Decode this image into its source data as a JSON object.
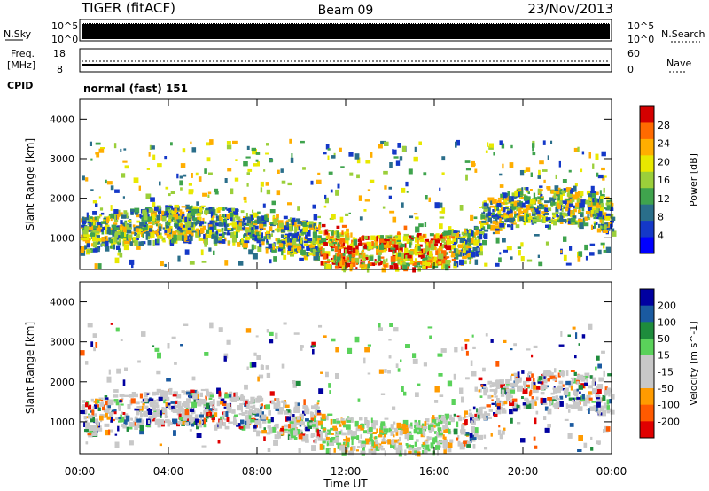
{
  "header": {
    "title": "TIGER (fitACF)",
    "beam": "Beam 09",
    "date": "23/Nov/2013"
  },
  "panels": {
    "nsky": {
      "label": "N.Sky",
      "ticks": [
        "10^5",
        "10^0"
      ],
      "right_label": "N.Search",
      "right_ticks": [
        "10^5",
        "10^0"
      ]
    },
    "freq": {
      "label_line1": "Freq.",
      "label_line2": "[MHz]",
      "ticks": [
        "18",
        "8"
      ],
      "right_label": "Nave",
      "right_ticks": [
        "60",
        "0"
      ]
    },
    "cpid": {
      "label": "CPID",
      "mode": "normal (fast) 151"
    }
  },
  "chart_data": [
    {
      "type": "heatmap",
      "name": "power",
      "ylabel": "Slant Range [km]",
      "yticks": [
        1000,
        2000,
        3000,
        4000
      ],
      "ylim": [
        200,
        4500
      ],
      "colorbar_label": "Power [dB]",
      "colorbar_ticks": [
        "28",
        "24",
        "20",
        "16",
        "12",
        "8",
        "4"
      ],
      "colors": [
        "#d40000",
        "#ff6a00",
        "#ffae00",
        "#e8e800",
        "#9bcf3a",
        "#3fa34d",
        "#2a6e8a",
        "#1438c8",
        "#0000ff"
      ]
    },
    {
      "type": "heatmap",
      "name": "velocity",
      "ylabel": "Slant Range [km]",
      "yticks": [
        1000,
        2000,
        3000,
        4000
      ],
      "ylim": [
        200,
        4500
      ],
      "colorbar_label": "Velocity [m s^-1]",
      "colorbar_ticks": [
        "200",
        "100",
        "50",
        "15",
        "-15",
        "-50",
        "-100",
        "-200"
      ],
      "colors": [
        "#0000a0",
        "#1a5aa0",
        "#1e8c3c",
        "#5ad25a",
        "#c8c8c8",
        "#c8c8c8",
        "#ff9b00",
        "#ff5a00",
        "#e00000"
      ]
    }
  ],
  "xaxis": {
    "label": "Time UT",
    "ticks": [
      "00:00",
      "04:00",
      "08:00",
      "12:00",
      "16:00",
      "20:00",
      "00:00"
    ]
  }
}
